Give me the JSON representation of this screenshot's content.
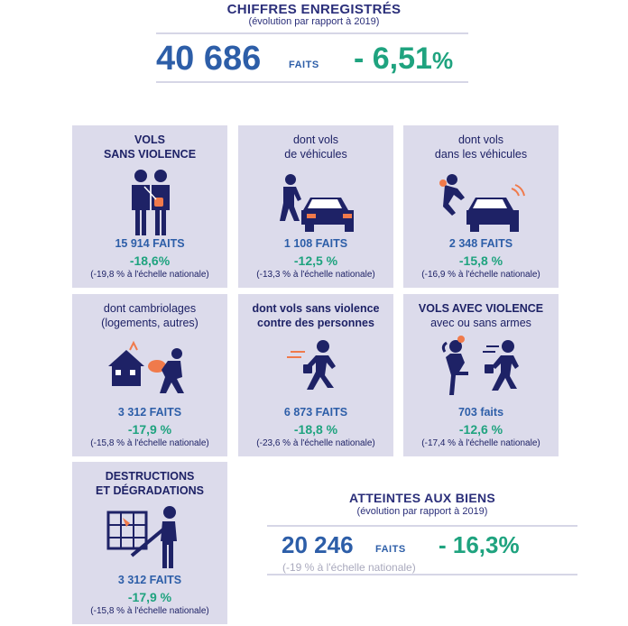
{
  "header": {
    "title": "CHIFFRES ENREGISTRÉS",
    "subtitle": "(évolution par rapport à 2019)",
    "total_value": "40 686",
    "total_unit": "FAITS",
    "total_pct": "- 6,51",
    "total_pct_sign": "%"
  },
  "cards": [
    {
      "line1": "VOLS",
      "line2": "SANS VIOLENCE",
      "faits": "15 914 FAITS",
      "pct": "-18,6%",
      "nat": "(-19,8 % à l'échelle nationale)",
      "icon": "two-persons-icon"
    },
    {
      "line1": "dont vols",
      "line2": "de véhicules",
      "faits": "1 108 FAITS",
      "pct": "-12,5 %",
      "nat": "(-13,3 % à l'échelle nationale)",
      "icon": "car-thief-icon"
    },
    {
      "line1": "dont vols",
      "line2": "dans les véhicules",
      "faits": "2 348 FAITS",
      "pct": "-15,8 %",
      "nat": "(-16,9 % à l'échelle nationale)",
      "icon": "car-break-in-icon"
    },
    {
      "line1": "dont cambriolages",
      "line2": "(logements, autres)",
      "faits": "3 312 FAITS",
      "pct": "-17,9 %",
      "nat": "(-15,8 % à l'échelle nationale)",
      "icon": "burglar-house-icon"
    },
    {
      "line1": "dont vols sans violence",
      "line2": "contre des personnes",
      "faits": "6 873 FAITS",
      "pct": "-18,8 %",
      "nat": "(-23,6 % à l'échelle nationale)",
      "icon": "running-thief-icon"
    },
    {
      "line1": "VOLS AVEC VIOLENCE",
      "line2": "avec ou sans armes",
      "faits": "703 faits",
      "pct": "-12,6 %",
      "nat": "(-17,4 % à l'échelle nationale)",
      "icon": "robbery-icon"
    },
    {
      "line1": "DESTRUCTIONS",
      "line2": "ET DÉGRADATIONS",
      "faits": "3 312 FAITS",
      "pct": "-17,9 %",
      "nat": "(-15,8 % à l'échelle nationale)",
      "icon": "vandalism-icon"
    }
  ],
  "atteintes": {
    "title": "ATTEINTES AUX BIENS",
    "subtitle": "(évolution par rapport à 2019)",
    "value": "20 246",
    "unit": "FAITS",
    "pct": "- 16,3%",
    "nat": "(-19 % à l'échelle nationale)"
  },
  "colors": {
    "navy": "#2b2f7a",
    "blue": "#2d5ea8",
    "green": "#1fa37f",
    "card_bg": "#dcdbeb",
    "accent_orange": "#f07a4b"
  }
}
